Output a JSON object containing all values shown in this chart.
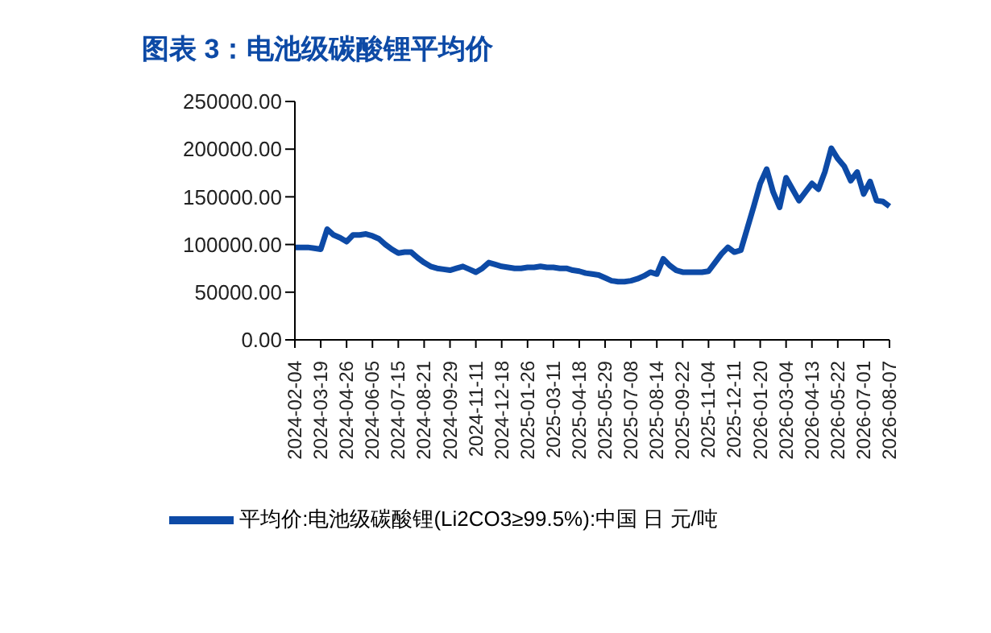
{
  "chart_data": {
    "type": "line",
    "title": "图表 3：电池级碳酸锂平均价",
    "categories": [
      "2024-02-04",
      null,
      null,
      null,
      "2024-03-19",
      null,
      null,
      null,
      "2024-04-26",
      null,
      null,
      null,
      "2024-06-05",
      null,
      null,
      null,
      "2024-07-15",
      null,
      null,
      null,
      "2024-08-21",
      null,
      null,
      null,
      "2024-09-29",
      null,
      null,
      null,
      "2024-11-11",
      null,
      null,
      null,
      "2024-12-18",
      null,
      null,
      null,
      "2025-01-26",
      null,
      null,
      null,
      "2025-03-11",
      null,
      null,
      null,
      "2025-04-18",
      null,
      null,
      null,
      "2025-05-29",
      null,
      null,
      null,
      "2025-07-08",
      null,
      null,
      null,
      "2025-08-14",
      null,
      null,
      null,
      "2025-09-22",
      null,
      null,
      null,
      "2025-11-04",
      null,
      null,
      null,
      "2025-12-11",
      null,
      null,
      null,
      "2026-01-20",
      null,
      null,
      null,
      "2026-03-04",
      null,
      null,
      null,
      "2026-04-13",
      null,
      null,
      null,
      "2026-05-22",
      null,
      null,
      null,
      "2026-07-01",
      null,
      null,
      null,
      "2026-08-07"
    ],
    "series": [
      {
        "name": "平均价:电池级碳酸锂(Li2CO3≥99.5%):中国 日 元/吨",
        "color": "#0d4aa6",
        "values": [
          97000,
          97000,
          97000,
          96000,
          95000,
          116000,
          110000,
          107000,
          103000,
          110000,
          110000,
          111000,
          109000,
          106000,
          100000,
          95000,
          91000,
          92000,
          92000,
          86000,
          81000,
          77000,
          75000,
          74000,
          73000,
          75000,
          77000,
          74000,
          71000,
          75000,
          81000,
          79000,
          77000,
          76000,
          75000,
          75000,
          76000,
          76000,
          77000,
          76000,
          76000,
          75000,
          75000,
          73000,
          72000,
          70000,
          69000,
          68000,
          65000,
          62000,
          61000,
          61000,
          62000,
          64000,
          67000,
          71000,
          69000,
          85000,
          78000,
          73000,
          71000,
          71000,
          71000,
          71000,
          72000,
          81000,
          90000,
          97000,
          92000,
          94000,
          117000,
          140000,
          164000,
          179000,
          155000,
          139000,
          170000,
          158000,
          146000,
          155000,
          164000,
          158000,
          176000,
          201000,
          190000,
          182000,
          167000,
          176000,
          153000,
          166000,
          146000,
          145000,
          140000
        ]
      }
    ],
    "ylim": [
      0,
      250000
    ],
    "yticks": [
      {
        "value": 0,
        "label": "0.00"
      },
      {
        "value": 50000,
        "label": "50000.00"
      },
      {
        "value": 100000,
        "label": "100000.00"
      },
      {
        "value": 150000,
        "label": "150000.00"
      },
      {
        "value": 200000,
        "label": "200000.00"
      },
      {
        "value": 250000,
        "label": "250000.00"
      }
    ],
    "grid": false,
    "legend": "bottom",
    "marker": "none",
    "line_style": "solid"
  }
}
